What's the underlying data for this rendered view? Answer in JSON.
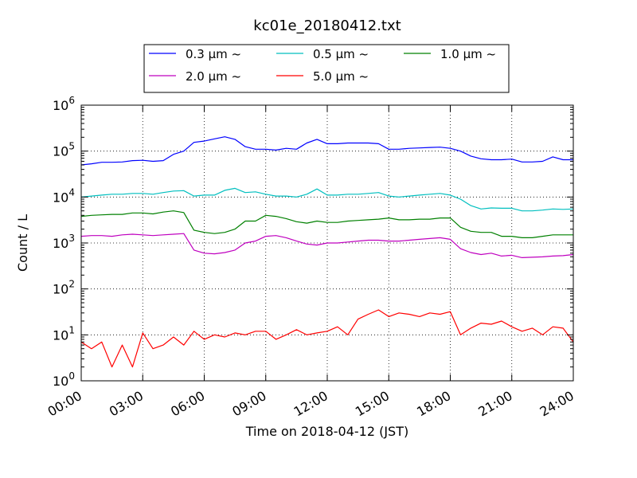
{
  "chart_data": {
    "type": "line",
    "title": "kc01e_20180412.txt",
    "xlabel": "Time on 2018-04-12 (JST)",
    "ylabel": "Count / L",
    "yscale": "log",
    "ylim": [
      1,
      1000000
    ],
    "y_ticks": [
      {
        "value": 1,
        "base": "10",
        "exp": "0"
      },
      {
        "value": 10,
        "base": "10",
        "exp": "1"
      },
      {
        "value": 100,
        "base": "10",
        "exp": "2"
      },
      {
        "value": 1000,
        "base": "10",
        "exp": "3"
      },
      {
        "value": 10000,
        "base": "10",
        "exp": "4"
      },
      {
        "value": 100000,
        "base": "10",
        "exp": "5"
      },
      {
        "value": 1000000,
        "base": "10",
        "exp": "6"
      }
    ],
    "xlim": [
      "00:00",
      "24:00"
    ],
    "x_ticks": [
      "00:00",
      "03:00",
      "06:00",
      "09:00",
      "12:00",
      "15:00",
      "18:00",
      "21:00",
      "24:00"
    ],
    "grid": true,
    "legend_position": "top-center",
    "series": [
      {
        "name": "0.3 μm ~",
        "color": "#0000ff",
        "x": [
          "00:00",
          "00:30",
          "01:00",
          "01:30",
          "02:00",
          "02:30",
          "03:00",
          "03:30",
          "04:00",
          "04:30",
          "05:00",
          "05:30",
          "06:00",
          "06:30",
          "07:00",
          "07:30",
          "08:00",
          "08:30",
          "09:00",
          "09:30",
          "10:00",
          "10:30",
          "11:00",
          "11:30",
          "12:00",
          "12:30",
          "13:00",
          "13:30",
          "14:00",
          "14:30",
          "15:00",
          "15:30",
          "16:00",
          "16:30",
          "17:00",
          "17:30",
          "18:00",
          "18:30",
          "19:00",
          "19:30",
          "20:00",
          "20:30",
          "21:00",
          "21:30",
          "22:00",
          "22:30",
          "23:00",
          "23:30",
          "24:00"
        ],
        "values": [
          50000,
          53000,
          57000,
          57000,
          58000,
          62000,
          63000,
          60000,
          62000,
          85000,
          100000,
          155000,
          165000,
          185000,
          205000,
          180000,
          125000,
          110000,
          110000,
          105000,
          115000,
          110000,
          150000,
          180000,
          145000,
          145000,
          150000,
          150000,
          150000,
          145000,
          110000,
          110000,
          115000,
          117000,
          120000,
          122000,
          115000,
          100000,
          78000,
          68000,
          65000,
          65000,
          67000,
          58000,
          58000,
          60000,
          75000,
          65000,
          65000
        ]
      },
      {
        "name": "0.5 μm ~",
        "color": "#00bfbf",
        "x": [
          "00:00",
          "00:30",
          "01:00",
          "01:30",
          "02:00",
          "02:30",
          "03:00",
          "03:30",
          "04:00",
          "04:30",
          "05:00",
          "05:30",
          "06:00",
          "06:30",
          "07:00",
          "07:30",
          "08:00",
          "08:30",
          "09:00",
          "09:30",
          "10:00",
          "10:30",
          "11:00",
          "11:30",
          "12:00",
          "12:30",
          "13:00",
          "13:30",
          "14:00",
          "14:30",
          "15:00",
          "15:30",
          "16:00",
          "16:30",
          "17:00",
          "17:30",
          "18:00",
          "18:30",
          "19:00",
          "19:30",
          "20:00",
          "20:30",
          "21:00",
          "21:30",
          "22:00",
          "22:30",
          "23:00",
          "23:30",
          "24:00"
        ],
        "values": [
          10000,
          10500,
          11000,
          11500,
          11500,
          12000,
          12000,
          11500,
          12500,
          13500,
          13800,
          10500,
          11000,
          11000,
          14000,
          15500,
          12500,
          13000,
          11500,
          10500,
          10500,
          10000,
          11500,
          15000,
          11000,
          11000,
          11500,
          11500,
          12000,
          12500,
          10500,
          10000,
          10500,
          11000,
          11500,
          12000,
          11000,
          9000,
          6500,
          5500,
          5800,
          5700,
          5700,
          5000,
          5000,
          5200,
          5500,
          5400,
          5500
        ]
      },
      {
        "name": "1.0 μm ~",
        "color": "#008000",
        "x": [
          "00:00",
          "00:30",
          "01:00",
          "01:30",
          "02:00",
          "02:30",
          "03:00",
          "03:30",
          "04:00",
          "04:30",
          "05:00",
          "05:30",
          "06:00",
          "06:30",
          "07:00",
          "07:30",
          "08:00",
          "08:30",
          "09:00",
          "09:30",
          "10:00",
          "10:30",
          "11:00",
          "11:30",
          "12:00",
          "12:30",
          "13:00",
          "13:30",
          "14:00",
          "14:30",
          "15:00",
          "15:30",
          "16:00",
          "16:30",
          "17:00",
          "17:30",
          "18:00",
          "18:30",
          "19:00",
          "19:30",
          "20:00",
          "20:30",
          "21:00",
          "21:30",
          "22:00",
          "22:30",
          "23:00",
          "23:30",
          "24:00"
        ],
        "values": [
          3800,
          4000,
          4100,
          4200,
          4200,
          4500,
          4500,
          4300,
          4700,
          5000,
          4600,
          1900,
          1700,
          1600,
          1700,
          2000,
          3000,
          3000,
          4000,
          3800,
          3400,
          2900,
          2700,
          3000,
          2800,
          2800,
          3000,
          3100,
          3200,
          3300,
          3500,
          3200,
          3200,
          3300,
          3300,
          3500,
          3500,
          2200,
          1800,
          1700,
          1700,
          1400,
          1400,
          1300,
          1300,
          1400,
          1500,
          1500,
          1500
        ]
      },
      {
        "name": "2.0 μm ~",
        "color": "#bf00bf",
        "x": [
          "00:00",
          "00:30",
          "01:00",
          "01:30",
          "02:00",
          "02:30",
          "03:00",
          "03:30",
          "04:00",
          "04:30",
          "05:00",
          "05:30",
          "06:00",
          "06:30",
          "07:00",
          "07:30",
          "08:00",
          "08:30",
          "09:00",
          "09:30",
          "10:00",
          "10:30",
          "11:00",
          "11:30",
          "12:00",
          "12:30",
          "13:00",
          "13:30",
          "14:00",
          "14:30",
          "15:00",
          "15:30",
          "16:00",
          "16:30",
          "17:00",
          "17:30",
          "18:00",
          "18:30",
          "19:00",
          "19:30",
          "20:00",
          "20:30",
          "21:00",
          "21:30",
          "22:00",
          "22:30",
          "23:00",
          "23:30",
          "24:00"
        ],
        "values": [
          1400,
          1450,
          1450,
          1400,
          1500,
          1550,
          1500,
          1450,
          1500,
          1550,
          1600,
          700,
          600,
          580,
          620,
          700,
          1000,
          1100,
          1400,
          1450,
          1300,
          1100,
          950,
          900,
          1000,
          1000,
          1050,
          1100,
          1150,
          1150,
          1100,
          1100,
          1150,
          1200,
          1250,
          1300,
          1200,
          750,
          620,
          560,
          600,
          520,
          540,
          480,
          490,
          500,
          520,
          530,
          560
        ]
      },
      {
        "name": "5.0 μm ~",
        "color": "#ff0000",
        "x": [
          "00:00",
          "00:30",
          "01:00",
          "01:30",
          "02:00",
          "02:30",
          "03:00",
          "03:30",
          "04:00",
          "04:30",
          "05:00",
          "05:30",
          "06:00",
          "06:30",
          "07:00",
          "07:30",
          "08:00",
          "08:30",
          "09:00",
          "09:30",
          "10:00",
          "10:30",
          "11:00",
          "11:30",
          "12:00",
          "12:30",
          "13:00",
          "13:30",
          "14:00",
          "14:30",
          "15:00",
          "15:30",
          "16:00",
          "16:30",
          "17:00",
          "17:30",
          "18:00",
          "18:30",
          "19:00",
          "19:30",
          "20:00",
          "20:30",
          "21:00",
          "21:30",
          "22:00",
          "22:30",
          "23:00",
          "23:30",
          "24:00"
        ],
        "values": [
          7,
          5,
          7,
          2,
          6,
          2,
          11,
          5,
          6,
          9,
          6,
          12,
          8,
          10,
          9,
          11,
          10,
          12,
          12,
          8,
          10,
          13,
          10,
          11,
          12,
          15,
          10,
          22,
          28,
          35,
          25,
          30,
          28,
          25,
          30,
          28,
          32,
          10,
          14,
          18,
          17,
          20,
          15,
          12,
          14,
          10,
          15,
          14,
          7
        ]
      }
    ]
  }
}
